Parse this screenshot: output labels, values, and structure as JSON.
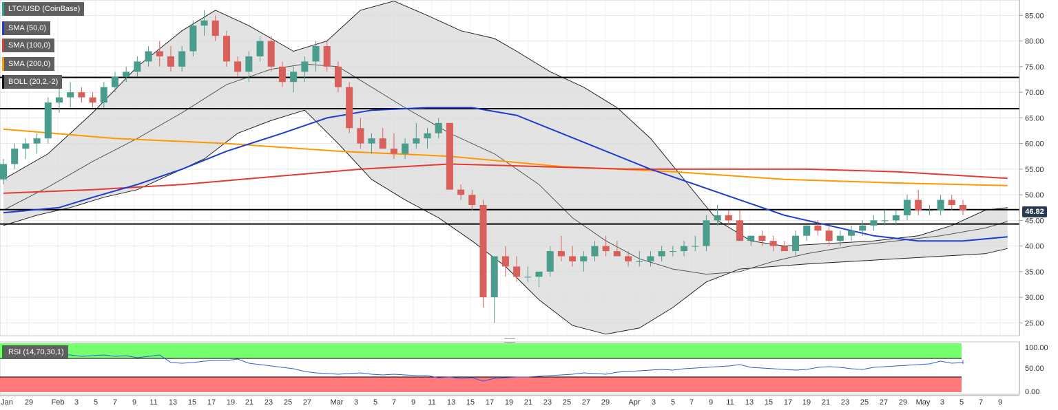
{
  "legend": [
    {
      "label": "LTC/USD (CoinBase)",
      "color": "#26a69a"
    },
    {
      "label": "SMA (50,0)",
      "color": "#1f3bd1"
    },
    {
      "label": "SMA (100,0)",
      "color": "#e53935"
    },
    {
      "label": "SMA (200,0)",
      "color": "#ff9800"
    },
    {
      "label": "BOLL (20,2,-2)",
      "color": "#111111"
    }
  ],
  "rsi_label": "RSI (14,70,30,1)",
  "last_price": "46.82",
  "colors": {
    "up": "#4a9d8c",
    "down": "#d9605a",
    "sma50": "#1f3bd1",
    "sma100": "#e53935",
    "sma200": "#ff9800",
    "band": "#d9d9d9",
    "rsi": "#2d5bd6",
    "ob": "#76ff6e",
    "os": "#ff7a7a"
  },
  "chart_data": {
    "type": "candlestick",
    "symbol": "LTC/USD (CoinBase)",
    "y_ticks": [
      "85.00",
      "80.00",
      "75.00",
      "70.00",
      "65.00",
      "60.00",
      "55.00",
      "50.00",
      "45.00",
      "40.00",
      "35.00",
      "30.00",
      "25.00"
    ],
    "y_values": [
      85,
      80,
      75,
      70,
      65,
      60,
      55,
      50,
      45,
      40,
      35,
      30,
      25
    ],
    "ylim": [
      22.5,
      88
    ],
    "x_labels": [
      "Jan",
      "29",
      "Feb",
      "3",
      "5",
      "7",
      "9",
      "11",
      "13",
      "15",
      "17",
      "19",
      "21",
      "23",
      "25",
      "27",
      "Mar",
      "3",
      "5",
      "7",
      "9",
      "11",
      "13",
      "15",
      "17",
      "19",
      "21",
      "23",
      "25",
      "27",
      "29",
      "Apr",
      "3",
      "5",
      "7",
      "9",
      "11",
      "13",
      "15",
      "17",
      "19",
      "21",
      "23",
      "25",
      "27",
      "29",
      "May",
      "3",
      "5",
      "7",
      "9"
    ],
    "horizontal_levels": [
      72.9,
      66.8,
      47.1,
      44.3
    ],
    "candles": [
      [
        53,
        57,
        52,
        56
      ],
      [
        56,
        60,
        55,
        59
      ],
      [
        59,
        61,
        57,
        60
      ],
      [
        60,
        62,
        58,
        61
      ],
      [
        61,
        69,
        60,
        68
      ],
      [
        68,
        71,
        66,
        69
      ],
      [
        69,
        72,
        67,
        70
      ],
      [
        70,
        71,
        68,
        69
      ],
      [
        69,
        70,
        67,
        68
      ],
      [
        68,
        72,
        67,
        71
      ],
      [
        71,
        74,
        70,
        73
      ],
      [
        73,
        75,
        72,
        74
      ],
      [
        74,
        77,
        73,
        76
      ],
      [
        76,
        79,
        75,
        78
      ],
      [
        78,
        80,
        75,
        77
      ],
      [
        77,
        79,
        74,
        75
      ],
      [
        75,
        79,
        74,
        78
      ],
      [
        78,
        84,
        77,
        83
      ],
      [
        83,
        86,
        81,
        84
      ],
      [
        84,
        85,
        80,
        81
      ],
      [
        81,
        82,
        75,
        76
      ],
      [
        76,
        77,
        73,
        74
      ],
      [
        74,
        78,
        72,
        77
      ],
      [
        77,
        81,
        76,
        80
      ],
      [
        80,
        81,
        74,
        75
      ],
      [
        75,
        76,
        71,
        72
      ],
      [
        72,
        75,
        70,
        74
      ],
      [
        74,
        77,
        72,
        76
      ],
      [
        76,
        80,
        74,
        79
      ],
      [
        79,
        80,
        74,
        75
      ],
      [
        75,
        76,
        70,
        71
      ],
      [
        71,
        72,
        62,
        63
      ],
      [
        63,
        65,
        59,
        60
      ],
      [
        60,
        62,
        58,
        61
      ],
      [
        61,
        63,
        59,
        59
      ],
      [
        59,
        62,
        57,
        58
      ],
      [
        58,
        61,
        57,
        60
      ],
      [
        60,
        64,
        59,
        61
      ],
      [
        61,
        63,
        59,
        62
      ],
      [
        62,
        65,
        61,
        64
      ],
      [
        64,
        64,
        51,
        51
      ],
      [
        51,
        52,
        49,
        50
      ],
      [
        50,
        51,
        47,
        48
      ],
      [
        48,
        49,
        28,
        30
      ],
      [
        30,
        38,
        25,
        38
      ],
      [
        38,
        40,
        34,
        36
      ],
      [
        36,
        38,
        33,
        34
      ],
      [
        34,
        36,
        33,
        34
      ],
      [
        34,
        35,
        32,
        35
      ],
      [
        35,
        40,
        34,
        39
      ],
      [
        39,
        42,
        37,
        38
      ],
      [
        38,
        40,
        36,
        37
      ],
      [
        37,
        39,
        35,
        38
      ],
      [
        38,
        41,
        37,
        40
      ],
      [
        40,
        42,
        38,
        39
      ],
      [
        39,
        41,
        38,
        38
      ],
      [
        38,
        39,
        36,
        37
      ],
      [
        37,
        39,
        36,
        37
      ],
      [
        37,
        39,
        36,
        38
      ],
      [
        38,
        40,
        37,
        39
      ],
      [
        39,
        40,
        38,
        39
      ],
      [
        39,
        41,
        38,
        40
      ],
      [
        40,
        42,
        39,
        40
      ],
      [
        40,
        46,
        39,
        45
      ],
      [
        45,
        48,
        44,
        46
      ],
      [
        46,
        47,
        44,
        45
      ],
      [
        45,
        47,
        41,
        41
      ],
      [
        41,
        42,
        40,
        42
      ],
      [
        42,
        43,
        40,
        41
      ],
      [
        41,
        42,
        39,
        40
      ],
      [
        40,
        41,
        39,
        39
      ],
      [
        39,
        43,
        38,
        42
      ],
      [
        42,
        44,
        41,
        44
      ],
      [
        44,
        45,
        42,
        43
      ],
      [
        43,
        44,
        40,
        41
      ],
      [
        41,
        43,
        40,
        42
      ],
      [
        42,
        44,
        41,
        43
      ],
      [
        43,
        45,
        42,
        44
      ],
      [
        44,
        46,
        43,
        45
      ],
      [
        45,
        47,
        44,
        45
      ],
      [
        45,
        47,
        44,
        46
      ],
      [
        46,
        50,
        45,
        49
      ],
      [
        49,
        51,
        46,
        47
      ],
      [
        47,
        48,
        46,
        47
      ],
      [
        47,
        50,
        46,
        49
      ],
      [
        49,
        50,
        47,
        48
      ],
      [
        48,
        49,
        46,
        47
      ]
    ],
    "sma50": [
      [
        0,
        46.5
      ],
      [
        5,
        47.5
      ],
      [
        8,
        49.5
      ],
      [
        12,
        52
      ],
      [
        16,
        55
      ],
      [
        20,
        58.5
      ],
      [
        25,
        62
      ],
      [
        29,
        65
      ],
      [
        33,
        66.5
      ],
      [
        38,
        67
      ],
      [
        42,
        67
      ],
      [
        46,
        65.5
      ],
      [
        50,
        62
      ],
      [
        54,
        58.5
      ],
      [
        58,
        55
      ],
      [
        62,
        52
      ],
      [
        66,
        49
      ],
      [
        70,
        46
      ],
      [
        74,
        44
      ],
      [
        78,
        42
      ],
      [
        82,
        41
      ],
      [
        86,
        41
      ],
      [
        90,
        41.8
      ]
    ],
    "sma100": [
      [
        0,
        50.3
      ],
      [
        8,
        51
      ],
      [
        16,
        52
      ],
      [
        24,
        53.5
      ],
      [
        32,
        55
      ],
      [
        40,
        56
      ],
      [
        48,
        55.5
      ],
      [
        56,
        55
      ],
      [
        64,
        55
      ],
      [
        72,
        55
      ],
      [
        80,
        54.5
      ],
      [
        90,
        53.2
      ]
    ],
    "sma200": [
      [
        0,
        62.8
      ],
      [
        10,
        61
      ],
      [
        20,
        60
      ],
      [
        30,
        58.5
      ],
      [
        40,
        57.5
      ],
      [
        50,
        55.5
      ],
      [
        60,
        54.5
      ],
      [
        70,
        53
      ],
      [
        80,
        52.3
      ],
      [
        90,
        51.8
      ]
    ]
  },
  "rsi": {
    "y_ticks": [
      "100.00",
      "50.00",
      "0.00"
    ],
    "levels": [
      70,
      30
    ]
  }
}
